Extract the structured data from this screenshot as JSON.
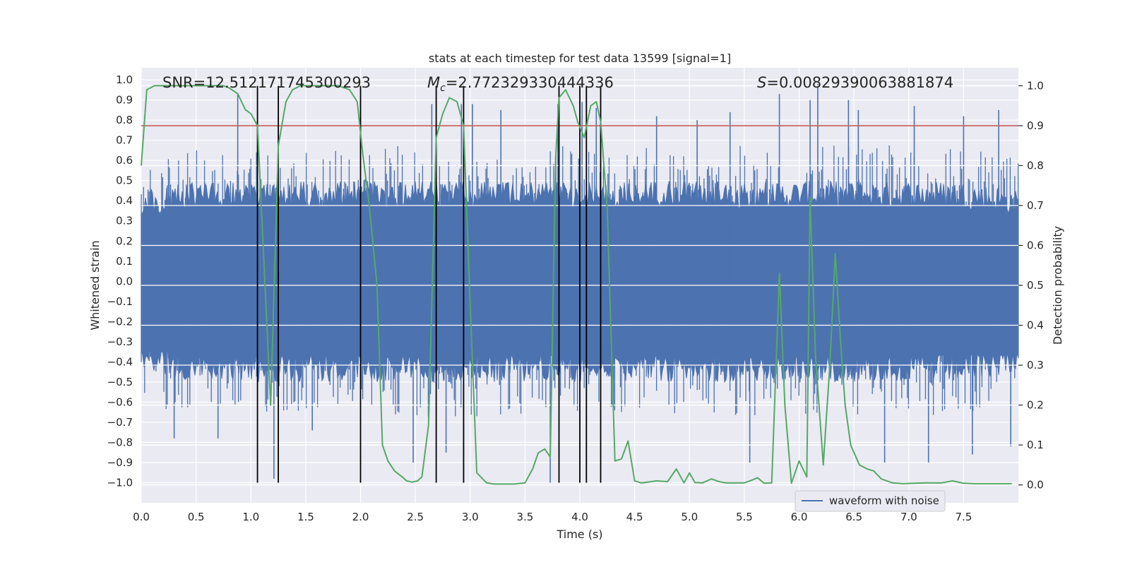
{
  "chart_data": {
    "type": "line",
    "title": "stats at each timestep for test data 13599 [signal=1]",
    "xlabel": "Time (s)",
    "ylabel": "Whitened strain",
    "y2label": "Detection probability",
    "xlim": [
      0.0,
      8.0
    ],
    "ylim": [
      -1.1,
      1.06
    ],
    "y2lim": [
      -0.045,
      1.045
    ],
    "x_ticks": [
      "0.0",
      "0.5",
      "1.0",
      "1.5",
      "2.0",
      "2.5",
      "3.0",
      "3.5",
      "4.0",
      "4.5",
      "5.0",
      "5.5",
      "6.0",
      "6.5",
      "7.0",
      "7.5"
    ],
    "y_ticks": [
      "1.0",
      "0.9",
      "0.8",
      "0.7",
      "0.6",
      "0.5",
      "0.4",
      "0.3",
      "0.2",
      "0.1",
      "0.0",
      "-0.1",
      "-0.2",
      "-0.3",
      "-0.4",
      "-0.5",
      "-0.6",
      "-0.7",
      "-0.8",
      "-0.9",
      "-1.0"
    ],
    "y2_ticks": [
      "1.0",
      "0.9",
      "0.8",
      "0.7",
      "0.6",
      "0.5",
      "0.4",
      "0.3",
      "0.2",
      "0.1",
      "0.0"
    ],
    "grid": true,
    "legend": {
      "placement": "lower-right",
      "entries": [
        "waveform with noise"
      ]
    },
    "annotations": {
      "snr": "SNR=12.512171745300293",
      "mc_symbol": "M",
      "mc_sub": "c",
      "mc_value": "=2.772329330444336",
      "s_symbol": "S",
      "s_value": "=0.00829390063881874"
    },
    "threshold": {
      "value": 0.9,
      "axis": "right",
      "color": "#c44e52"
    },
    "vertical_markers": [
      1.06,
      1.25,
      2.0,
      2.69,
      2.94,
      3.81,
      4.0,
      4.06,
      4.19
    ],
    "marker_range": [
      -1.0,
      0.97
    ],
    "series": [
      {
        "name": "waveform with noise",
        "kind": "noise-envelope",
        "color": "#4c72b0",
        "envelope": [
          {
            "x": 0.0,
            "upper": 0.45,
            "lower": -0.45
          },
          {
            "x": 0.5,
            "upper": 0.5,
            "lower": -0.5
          },
          {
            "x": 1.0,
            "upper": 0.5,
            "lower": -0.5
          },
          {
            "x": 1.5,
            "upper": 0.5,
            "lower": -0.5
          },
          {
            "x": 2.0,
            "upper": 0.5,
            "lower": -0.5
          },
          {
            "x": 2.5,
            "upper": 0.5,
            "lower": -0.5
          },
          {
            "x": 3.0,
            "upper": 0.5,
            "lower": -0.5
          },
          {
            "x": 3.5,
            "upper": 0.5,
            "lower": -0.5
          },
          {
            "x": 4.0,
            "upper": 0.5,
            "lower": -0.5
          },
          {
            "x": 4.5,
            "upper": 0.5,
            "lower": -0.5
          },
          {
            "x": 5.0,
            "upper": 0.5,
            "lower": -0.5
          },
          {
            "x": 5.5,
            "upper": 0.5,
            "lower": -0.5
          },
          {
            "x": 6.0,
            "upper": 0.5,
            "lower": -0.5
          },
          {
            "x": 6.5,
            "upper": 0.5,
            "lower": -0.5
          },
          {
            "x": 7.0,
            "upper": 0.5,
            "lower": -0.5
          },
          {
            "x": 7.5,
            "upper": 0.5,
            "lower": -0.5
          },
          {
            "x": 8.0,
            "upper": 0.45,
            "lower": -0.45
          }
        ],
        "peaks": [
          {
            "x": 0.88,
            "y": 0.93
          },
          {
            "x": 1.21,
            "y": -0.98
          },
          {
            "x": 2.65,
            "y": 0.88
          },
          {
            "x": 2.78,
            "y": -0.85
          },
          {
            "x": 2.92,
            "y": 0.88
          },
          {
            "x": 3.02,
            "y": 0.88
          },
          {
            "x": 3.73,
            "y": -1.0
          },
          {
            "x": 3.8,
            "y": 0.88
          },
          {
            "x": 4.02,
            "y": 0.89
          },
          {
            "x": 4.15,
            "y": 0.86
          },
          {
            "x": 5.55,
            "y": -0.9
          },
          {
            "x": 5.82,
            "y": 0.93
          },
          {
            "x": 6.1,
            "y": 0.9
          },
          {
            "x": 6.17,
            "y": 0.98
          },
          {
            "x": 6.45,
            "y": 0.9
          },
          {
            "x": 6.78,
            "y": -0.9
          },
          {
            "x": 7.05,
            "y": 0.87
          },
          {
            "x": 7.18,
            "y": -0.9
          },
          {
            "x": 7.5,
            "y": 0.82
          },
          {
            "x": 7.82,
            "y": 0.85
          },
          {
            "x": 0.3,
            "y": -0.78
          },
          {
            "x": 0.7,
            "y": -0.78
          },
          {
            "x": 1.56,
            "y": -0.74
          },
          {
            "x": 2.48,
            "y": -0.9
          },
          {
            "x": 3.28,
            "y": 0.85
          },
          {
            "x": 4.7,
            "y": 0.82
          },
          {
            "x": 5.07,
            "y": 0.8
          },
          {
            "x": 5.37,
            "y": 0.84
          },
          {
            "x": 6.54,
            "y": 0.85
          },
          {
            "x": 7.58,
            "y": -0.86
          },
          {
            "x": 7.93,
            "y": -0.82
          }
        ]
      },
      {
        "name": "",
        "color": "#55a868",
        "axis": "right",
        "x": [
          0.0,
          0.05,
          0.12,
          0.25,
          0.5,
          0.75,
          0.8,
          0.88,
          0.95,
          1.0,
          1.06,
          1.12,
          1.18,
          1.25,
          1.32,
          1.38,
          1.45,
          1.6,
          1.8,
          1.9,
          1.97,
          2.02,
          2.08,
          2.15,
          2.2,
          2.25,
          2.31,
          2.38,
          2.42,
          2.47,
          2.52,
          2.56,
          2.62,
          2.69,
          2.75,
          2.81,
          2.88,
          2.94,
          3.0,
          3.06,
          3.15,
          3.22,
          3.3,
          3.4,
          3.5,
          3.57,
          3.62,
          3.68,
          3.73,
          3.78,
          3.81,
          3.87,
          3.94,
          3.98,
          4.04,
          4.1,
          4.15,
          4.19,
          4.25,
          4.32,
          4.38,
          4.44,
          4.5,
          4.56,
          4.62,
          4.7,
          4.8,
          4.88,
          4.95,
          5.0,
          5.05,
          5.12,
          5.2,
          5.27,
          5.33,
          5.42,
          5.5,
          5.57,
          5.62,
          5.68,
          5.75,
          5.82,
          5.87,
          5.93,
          6.0,
          6.07,
          6.1,
          6.15,
          6.22,
          6.28,
          6.33,
          6.38,
          6.42,
          6.47,
          6.55,
          6.62,
          6.68,
          6.75,
          6.85,
          6.95,
          7.05,
          7.15,
          7.3,
          7.4,
          7.5,
          7.6,
          7.7,
          7.8,
          7.86,
          7.94
        ],
        "y": [
          0.8,
          0.99,
          1.0,
          1.0,
          1.0,
          1.0,
          0.995,
          0.98,
          0.94,
          0.93,
          0.9,
          0.55,
          0.2,
          0.85,
          0.96,
          0.99,
          1.0,
          1.0,
          1.0,
          0.99,
          0.96,
          0.83,
          0.7,
          0.5,
          0.1,
          0.06,
          0.035,
          0.02,
          0.01,
          0.007,
          0.01,
          0.02,
          0.15,
          0.87,
          0.93,
          0.97,
          0.96,
          0.9,
          0.45,
          0.03,
          0.005,
          0.002,
          0.002,
          0.002,
          0.005,
          0.04,
          0.08,
          0.09,
          0.07,
          0.82,
          0.97,
          0.99,
          0.95,
          0.91,
          0.87,
          0.95,
          0.96,
          0.91,
          0.69,
          0.06,
          0.065,
          0.11,
          0.01,
          0.005,
          0.007,
          0.01,
          0.008,
          0.04,
          0.005,
          0.03,
          0.006,
          0.005,
          0.015,
          0.008,
          0.005,
          0.005,
          0.005,
          0.012,
          0.018,
          0.004,
          0.005,
          0.53,
          0.2,
          0.004,
          0.06,
          0.02,
          0.72,
          0.32,
          0.05,
          0.3,
          0.58,
          0.35,
          0.2,
          0.1,
          0.05,
          0.04,
          0.035,
          0.015,
          0.005,
          0.003,
          0.004,
          0.005,
          0.005,
          0.01,
          0.004,
          0.003,
          0.003,
          0.003,
          0.003,
          0.003
        ]
      }
    ]
  }
}
